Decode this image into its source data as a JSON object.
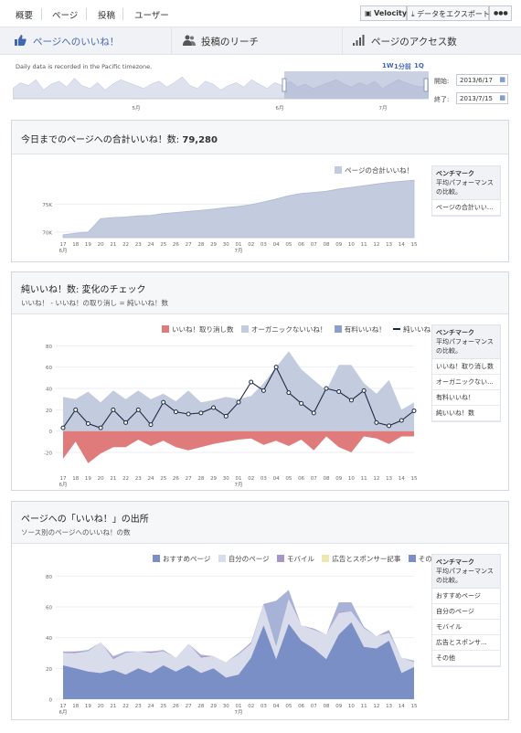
{
  "topnav": {
    "tabs": [
      "概要",
      "ページ",
      "投稿",
      "ユーザー"
    ],
    "buttons": {
      "velocity": "Velocity",
      "export": "データをエクスポート",
      "more": "●●●"
    }
  },
  "subtabs": [
    "ページへのいいね！",
    "投稿のリーチ",
    "ページのアクセス数"
  ],
  "timeline": {
    "note": "Daily data is recorded in the Pacific timezone.",
    "ranges": [
      "1W",
      "1分前",
      "1Q"
    ],
    "start_label": "開始:",
    "start_value": "2013/6/17",
    "end_label": "終了:",
    "end_value": "2013/7/15",
    "month_labels": [
      "5月",
      "6月",
      "7月"
    ]
  },
  "panel1": {
    "title": "今日までのページへの合計いいね！数:",
    "total": "79,280",
    "legend": "ページの合計いいね！",
    "bench_title": "ベンチマーク",
    "bench_sub": "平均パフォーマンスの比較。",
    "bench_items": [
      "ページの合計いい..."
    ]
  },
  "panel2": {
    "title": "純いいね！数: 変化のチェック",
    "subtitle": "いいね！ - いいね！の取り消し = 純いいね！数",
    "legend": [
      "いいね！取り消し数",
      "オーガニックないいね！",
      "有料いいね！",
      "純いいね！数"
    ],
    "bench_title": "ベンチマーク",
    "bench_sub": "平均パフォーマンスの比較。",
    "bench_items": [
      "いいね！取り消し数",
      "オーガニックない...",
      "有料いいね！",
      "純いいね！数"
    ]
  },
  "panel3": {
    "title": "ページへの「いいね！」の出所",
    "subtitle": "ソース別のページへのいいね！の数",
    "legend": [
      "おすすめページ",
      "自分のページ",
      "モバイル",
      "広告とスポンサー記事",
      "その他"
    ],
    "bench_title": "ベンチマーク",
    "bench_sub": "平均パフォーマンスの比較。",
    "bench_items": [
      "おすすめページ",
      "自分のページ",
      "モバイル",
      "広告とスポンサ...",
      "その他"
    ]
  },
  "x_labels": [
    "17",
    "18",
    "19",
    "20",
    "21",
    "22",
    "23",
    "24",
    "25",
    "26",
    "27",
    "28",
    "29",
    "30",
    "01",
    "02",
    "03",
    "04",
    "05",
    "06",
    "07",
    "08",
    "09",
    "10",
    "11",
    "12",
    "13",
    "14",
    "15"
  ],
  "month_under": {
    "m6": "6月",
    "m7": "7月"
  },
  "colors": {
    "accent": "#4267b2",
    "area": "#c3cbdf",
    "unlike": "#e07b7b",
    "line": "#1d2a47",
    "bluefill": "#7a8fc5",
    "lightfill": "#d9dcea",
    "mobile": "#a996c7"
  },
  "chart_data": [
    {
      "type": "area",
      "title": "今日までのページへの合計いいね！数: 79,280",
      "x": [
        "17",
        "18",
        "19",
        "20",
        "21",
        "22",
        "23",
        "24",
        "25",
        "26",
        "27",
        "28",
        "29",
        "30",
        "01",
        "02",
        "03",
        "04",
        "05",
        "06",
        "07",
        "08",
        "09",
        "10",
        "11",
        "12",
        "13",
        "14",
        "15"
      ],
      "series": [
        {
          "name": "ページの合計いいね！",
          "values": [
            69500,
            69800,
            70000,
            72400,
            72600,
            72700,
            72900,
            73000,
            73300,
            73500,
            73700,
            73900,
            74100,
            74400,
            74600,
            74900,
            75400,
            75900,
            76500,
            76900,
            77100,
            77300,
            77700,
            78000,
            78300,
            78600,
            78900,
            79100,
            79280
          ]
        }
      ],
      "y_ticks": [
        "70K",
        "75K"
      ],
      "ylim": [
        69000,
        79800
      ]
    },
    {
      "type": "area",
      "title": "純いいね！数: 変化のチェック",
      "x": [
        "17",
        "18",
        "19",
        "20",
        "21",
        "22",
        "23",
        "24",
        "25",
        "26",
        "27",
        "28",
        "29",
        "30",
        "01",
        "02",
        "03",
        "04",
        "05",
        "06",
        "07",
        "08",
        "09",
        "10",
        "11",
        "12",
        "13",
        "14",
        "15"
      ],
      "series": [
        {
          "name": "いいね！取り消し数",
          "values": [
            -26,
            -10,
            -30,
            -21,
            -15,
            -15,
            -8,
            -14,
            -9,
            -15,
            -18,
            -15,
            -12,
            -10,
            -8,
            -7,
            -13,
            -9,
            -14,
            -8,
            -18,
            -5,
            -15,
            -20,
            -5,
            -7,
            -12,
            -5,
            -5
          ]
        },
        {
          "name": "オーガニックないいね！",
          "values": [
            32,
            30,
            37,
            27,
            38,
            30,
            38,
            30,
            35,
            28,
            38,
            27,
            29,
            32,
            30,
            33,
            45,
            60,
            75,
            58,
            48,
            38,
            62,
            62,
            45,
            35,
            48,
            20,
            27
          ]
        },
        {
          "name": "純いいね！数",
          "values": [
            3,
            20,
            7,
            3,
            20,
            8,
            20,
            6,
            27,
            18,
            16,
            17,
            22,
            14,
            27,
            46,
            38,
            60,
            36,
            26,
            17,
            40,
            37,
            29,
            38,
            8,
            5,
            10,
            19
          ]
        }
      ],
      "y_ticks": [
        80,
        60,
        40,
        20,
        0,
        -20
      ],
      "ylim": [
        -38,
        82
      ]
    },
    {
      "type": "area",
      "title": "ページへの「いいね！」の出所",
      "x": [
        "17",
        "18",
        "19",
        "20",
        "21",
        "22",
        "23",
        "24",
        "25",
        "26",
        "27",
        "28",
        "29",
        "30",
        "01",
        "02",
        "03",
        "04",
        "05",
        "06",
        "07",
        "08",
        "09",
        "10",
        "11",
        "12",
        "13",
        "14",
        "15"
      ],
      "series": [
        {
          "name": "おすすめページ",
          "values": [
            22,
            20,
            18,
            17,
            19,
            16,
            20,
            17,
            22,
            18,
            22,
            17,
            20,
            14,
            16,
            27,
            48,
            26,
            49,
            38,
            33,
            26,
            42,
            50,
            34,
            33,
            38,
            17,
            21
          ]
        },
        {
          "name": "自分のページ",
          "values": [
            8,
            10,
            13,
            20,
            7,
            14,
            11,
            13,
            9,
            9,
            14,
            10,
            8,
            10,
            13,
            9,
            13,
            8,
            16,
            10,
            12,
            16,
            14,
            7,
            12,
            8,
            5,
            10,
            3
          ]
        },
        {
          "name": "モバイル",
          "values": [
            0,
            1,
            0,
            0,
            1,
            0,
            0,
            1,
            0,
            0,
            0,
            1,
            0,
            0,
            0,
            1,
            0,
            0,
            1,
            0,
            0,
            0,
            1,
            0,
            0,
            0,
            1,
            0,
            0
          ]
        },
        {
          "name": "広告とスポンサー記事",
          "values": [
            0,
            0,
            0,
            0,
            0,
            0,
            0,
            0,
            0,
            0,
            0,
            0,
            0,
            0,
            0,
            0,
            0,
            0,
            0,
            0,
            0,
            0,
            0,
            0,
            0,
            0,
            0,
            0,
            0
          ]
        },
        {
          "name": "その他",
          "values": [
            1,
            0,
            1,
            0,
            1,
            1,
            0,
            0,
            1,
            0,
            0,
            1,
            0,
            0,
            1,
            0,
            1,
            30,
            5,
            0,
            1,
            0,
            6,
            6,
            1,
            0,
            1,
            0,
            1
          ]
        }
      ],
      "y_ticks": [
        80,
        60,
        40,
        20,
        0
      ],
      "ylim": [
        0,
        82
      ]
    }
  ]
}
